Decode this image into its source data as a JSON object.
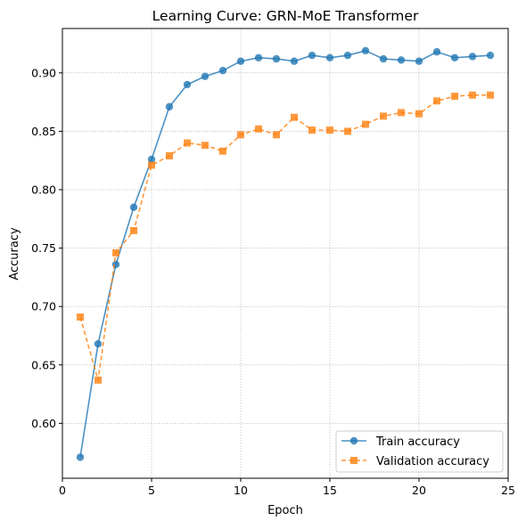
{
  "chart_data": {
    "type": "line",
    "title": "Learning Curve: GRN-MoE Transformer",
    "xlabel": "Epoch",
    "ylabel": "Accuracy",
    "xlim": [
      0,
      25
    ],
    "ylim": [
      0.553,
      0.938
    ],
    "x_ticks": [
      0,
      5,
      10,
      15,
      20,
      25
    ],
    "y_ticks": [
      0.6,
      0.65,
      0.7,
      0.75,
      0.8,
      0.85,
      0.9
    ],
    "x_tick_labels": [
      "0",
      "5",
      "10",
      "15",
      "20",
      "25"
    ],
    "y_tick_labels": [
      "0.60",
      "0.65",
      "0.70",
      "0.75",
      "0.80",
      "0.85",
      "0.90"
    ],
    "grid": true,
    "legend_position": "bottom-right",
    "x": [
      1,
      2,
      3,
      4,
      5,
      6,
      7,
      8,
      9,
      10,
      11,
      12,
      13,
      14,
      15,
      16,
      17,
      18,
      19,
      20,
      21,
      22,
      23,
      24
    ],
    "series": [
      {
        "name": "Train accuracy",
        "color": "#1f77b4",
        "marker": "circle",
        "line_style": "solid",
        "values": [
          0.571,
          0.668,
          0.736,
          0.785,
          0.826,
          0.871,
          0.89,
          0.897,
          0.902,
          0.91,
          0.913,
          0.912,
          0.91,
          0.915,
          0.913,
          0.915,
          0.919,
          0.912,
          0.911,
          0.91,
          0.918,
          0.913,
          0.914,
          0.915
        ]
      },
      {
        "name": "Validation accuracy",
        "color": "#ff7f0e",
        "marker": "square",
        "line_style": "dashed",
        "values": [
          0.691,
          0.637,
          0.746,
          0.765,
          0.821,
          0.829,
          0.84,
          0.838,
          0.833,
          0.847,
          0.852,
          0.847,
          0.862,
          0.851,
          0.851,
          0.85,
          0.856,
          0.863,
          0.866,
          0.865,
          0.876,
          0.88,
          0.881,
          0.881
        ]
      }
    ]
  }
}
